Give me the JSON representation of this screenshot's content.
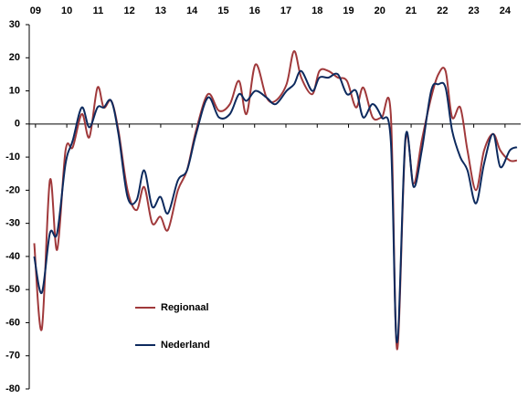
{
  "chart_data": {
    "type": "line",
    "x": [
      9.46,
      9.7,
      9.96,
      10.19,
      10.46,
      10.69,
      10.98,
      11.22,
      11.48,
      11.68,
      11.92,
      12.15,
      12.44,
      12.73,
      12.97,
      13.23,
      13.49,
      13.73,
      14.05,
      14.34,
      14.63,
      15.01,
      15.36,
      15.71,
      16.0,
      16.24,
      16.53,
      16.88,
      17.17,
      17.52,
      17.76,
      17.99,
      18.34,
      18.57,
      18.86,
      19.16,
      19.45,
      19.74,
      19.97,
      20.27,
      20.56,
      20.85,
      21.05,
      21.32,
      21.58,
      21.84,
      22.14,
      22.37,
      22.6,
      22.81,
      23.07,
      23.3,
      23.57,
      23.83,
      24.12,
      24.35,
      24.65,
      24.88
    ],
    "series": [
      {
        "name": "Regionaal",
        "color": "#a0393b",
        "values": [
          -36,
          -62,
          -17,
          -38,
          -8,
          -7,
          3,
          -4,
          11,
          5,
          7,
          -2,
          -20,
          -26,
          -19,
          -30,
          -28,
          -32,
          -20,
          -14,
          -2,
          9,
          4,
          6,
          13,
          3,
          18,
          8,
          7,
          12,
          22,
          14,
          9,
          16,
          16,
          14,
          13,
          5,
          11,
          2,
          2,
          3,
          -68,
          -5,
          -18,
          -5,
          8,
          15,
          16,
          2,
          5,
          -8,
          -20,
          -8,
          -3,
          -8,
          -11,
          -11
        ]
      },
      {
        "name": "Nederland",
        "color": "#0d2a5e",
        "values": [
          -40,
          -51,
          -33,
          -33,
          -12,
          -5,
          5,
          -1,
          5,
          5,
          7,
          -3,
          -22,
          -23,
          -14,
          -25,
          -22,
          -27,
          -17,
          -14,
          -3,
          8,
          2,
          3,
          9,
          7,
          10,
          8,
          6,
          10,
          12,
          16,
          10,
          14,
          14,
          15,
          9,
          10,
          2,
          6,
          2,
          -5,
          -66,
          -4,
          -19,
          -8,
          10,
          12,
          11,
          -2,
          -10,
          -14,
          -24,
          -12,
          -3,
          -13,
          -8,
          -7
        ]
      }
    ],
    "xlim": [
      9.3,
      25
    ],
    "xticks": [
      {
        "value": 9.5,
        "label": "09"
      },
      {
        "value": 10.5,
        "label": "10"
      },
      {
        "value": 11.5,
        "label": "11"
      },
      {
        "value": 12.5,
        "label": "12"
      },
      {
        "value": 13.5,
        "label": "13"
      },
      {
        "value": 14.5,
        "label": "14"
      },
      {
        "value": 15.5,
        "label": "15"
      },
      {
        "value": 16.5,
        "label": "16"
      },
      {
        "value": 17.5,
        "label": "17"
      },
      {
        "value": 18.5,
        "label": "18"
      },
      {
        "value": 19.5,
        "label": "19"
      },
      {
        "value": 20.5,
        "label": "20"
      },
      {
        "value": 21.5,
        "label": "21"
      },
      {
        "value": 22.5,
        "label": "22"
      },
      {
        "value": 23.5,
        "label": "23"
      },
      {
        "value": 24.5,
        "label": "24"
      }
    ],
    "ylim": [
      -80,
      30
    ],
    "yticks": [
      30,
      20,
      10,
      0,
      -10,
      -20,
      -30,
      -40,
      -50,
      -60,
      -70,
      -80
    ],
    "grid": false,
    "legend": "lower-left"
  }
}
